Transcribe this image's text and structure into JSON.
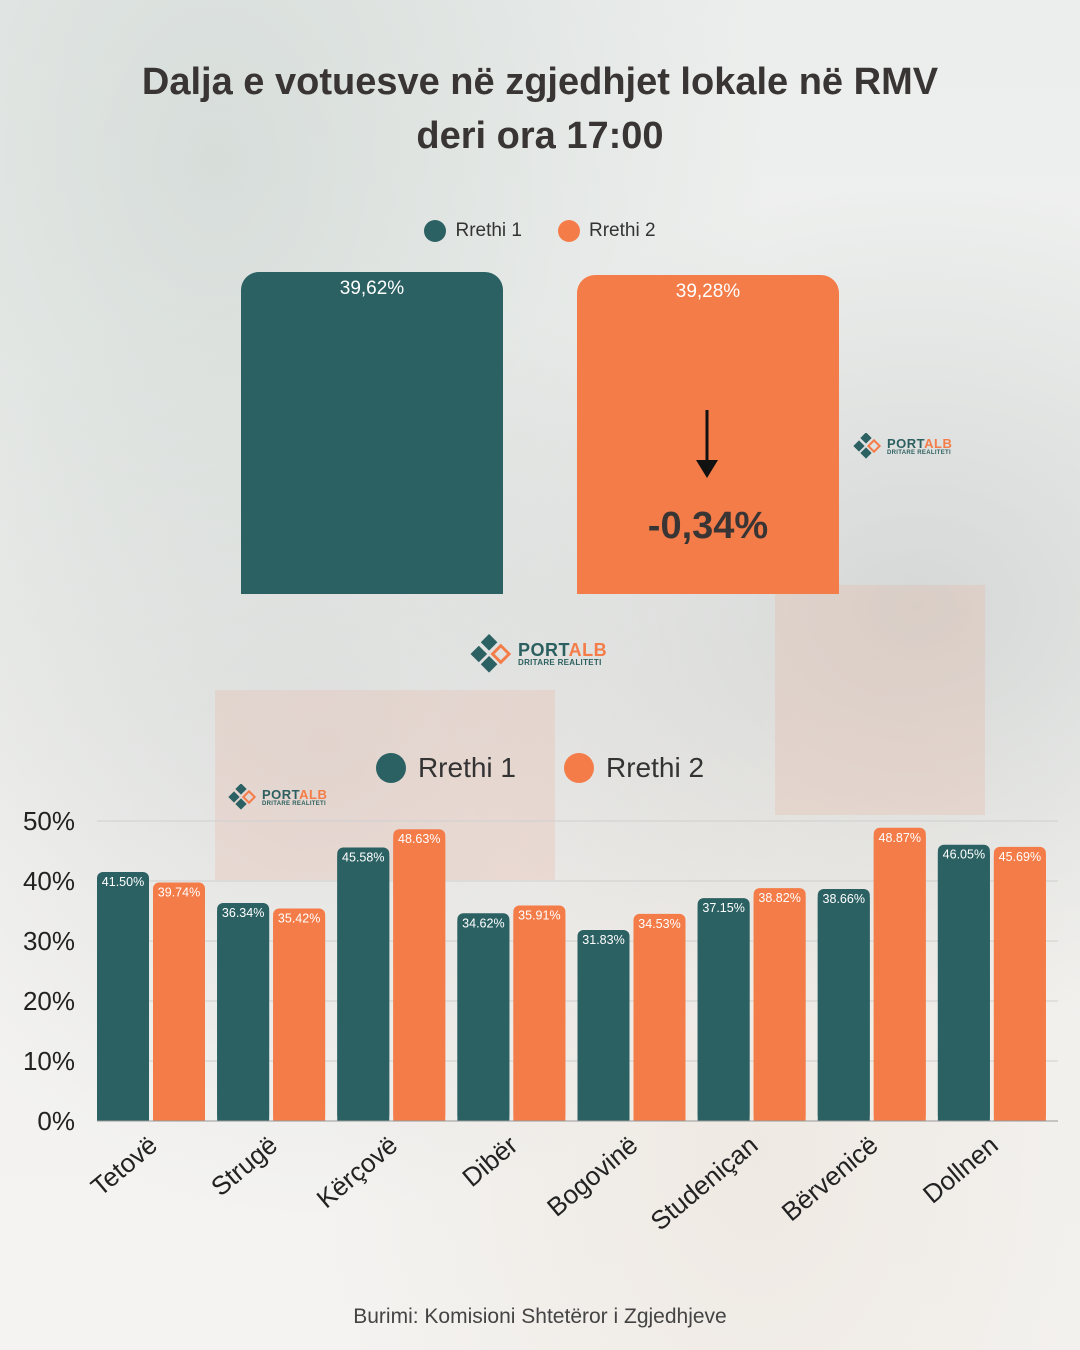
{
  "title_line1": "Dalja e votuesve në zgjedhjet lokale në RMV",
  "title_line2": "deri ora 17:00",
  "colors": {
    "rrethi1": "#2c6163",
    "rrethi2": "#f47c48",
    "text": "#3a3535"
  },
  "top_legend": [
    "Rrethi 1",
    "Rrethi 2"
  ],
  "top_bars": [
    {
      "label": "Rrethi 1",
      "value_text": "39,62%",
      "value": 39.62
    },
    {
      "label": "Rrethi 2",
      "value_text": "39,28%",
      "value": 39.28
    }
  ],
  "difference": "-0,34%",
  "arrow_icon": "down-arrow-icon",
  "logo": {
    "brand_a": "PORT",
    "brand_b": "ALB",
    "tagline": "DRITARE REALITETI"
  },
  "chart_data": {
    "type": "bar",
    "categories": [
      "Tetovë",
      "Strugë",
      "Kërçovë",
      "Dibër",
      "Bogovinë",
      "Studeniçan",
      "Bërvenicë",
      "Dollnen"
    ],
    "series": [
      {
        "name": "Rrethi 1",
        "values": [
          41.5,
          36.34,
          45.58,
          34.62,
          31.83,
          37.15,
          38.66,
          46.05
        ],
        "labels": [
          "41.50%",
          "36.34%",
          "45.58%",
          "34.62%",
          "31.83%",
          "37.15%",
          "38.66%",
          "46.05%"
        ]
      },
      {
        "name": "Rrethi 2",
        "values": [
          39.74,
          35.42,
          48.63,
          35.91,
          34.53,
          38.82,
          48.87,
          45.69
        ],
        "labels": [
          "39.74%",
          "35.42%",
          "48.63%",
          "35.91%",
          "34.53%",
          "38.82%",
          "48.87%",
          "45.69%"
        ]
      }
    ],
    "yticks": [
      "0%",
      "10%",
      "20%",
      "30%",
      "40%",
      "50%"
    ],
    "ylim": [
      0,
      50
    ],
    "grid": true,
    "legend_position": "top"
  },
  "source": "Burimi: Komisioni Shtetëror i Zgjedhjeve"
}
